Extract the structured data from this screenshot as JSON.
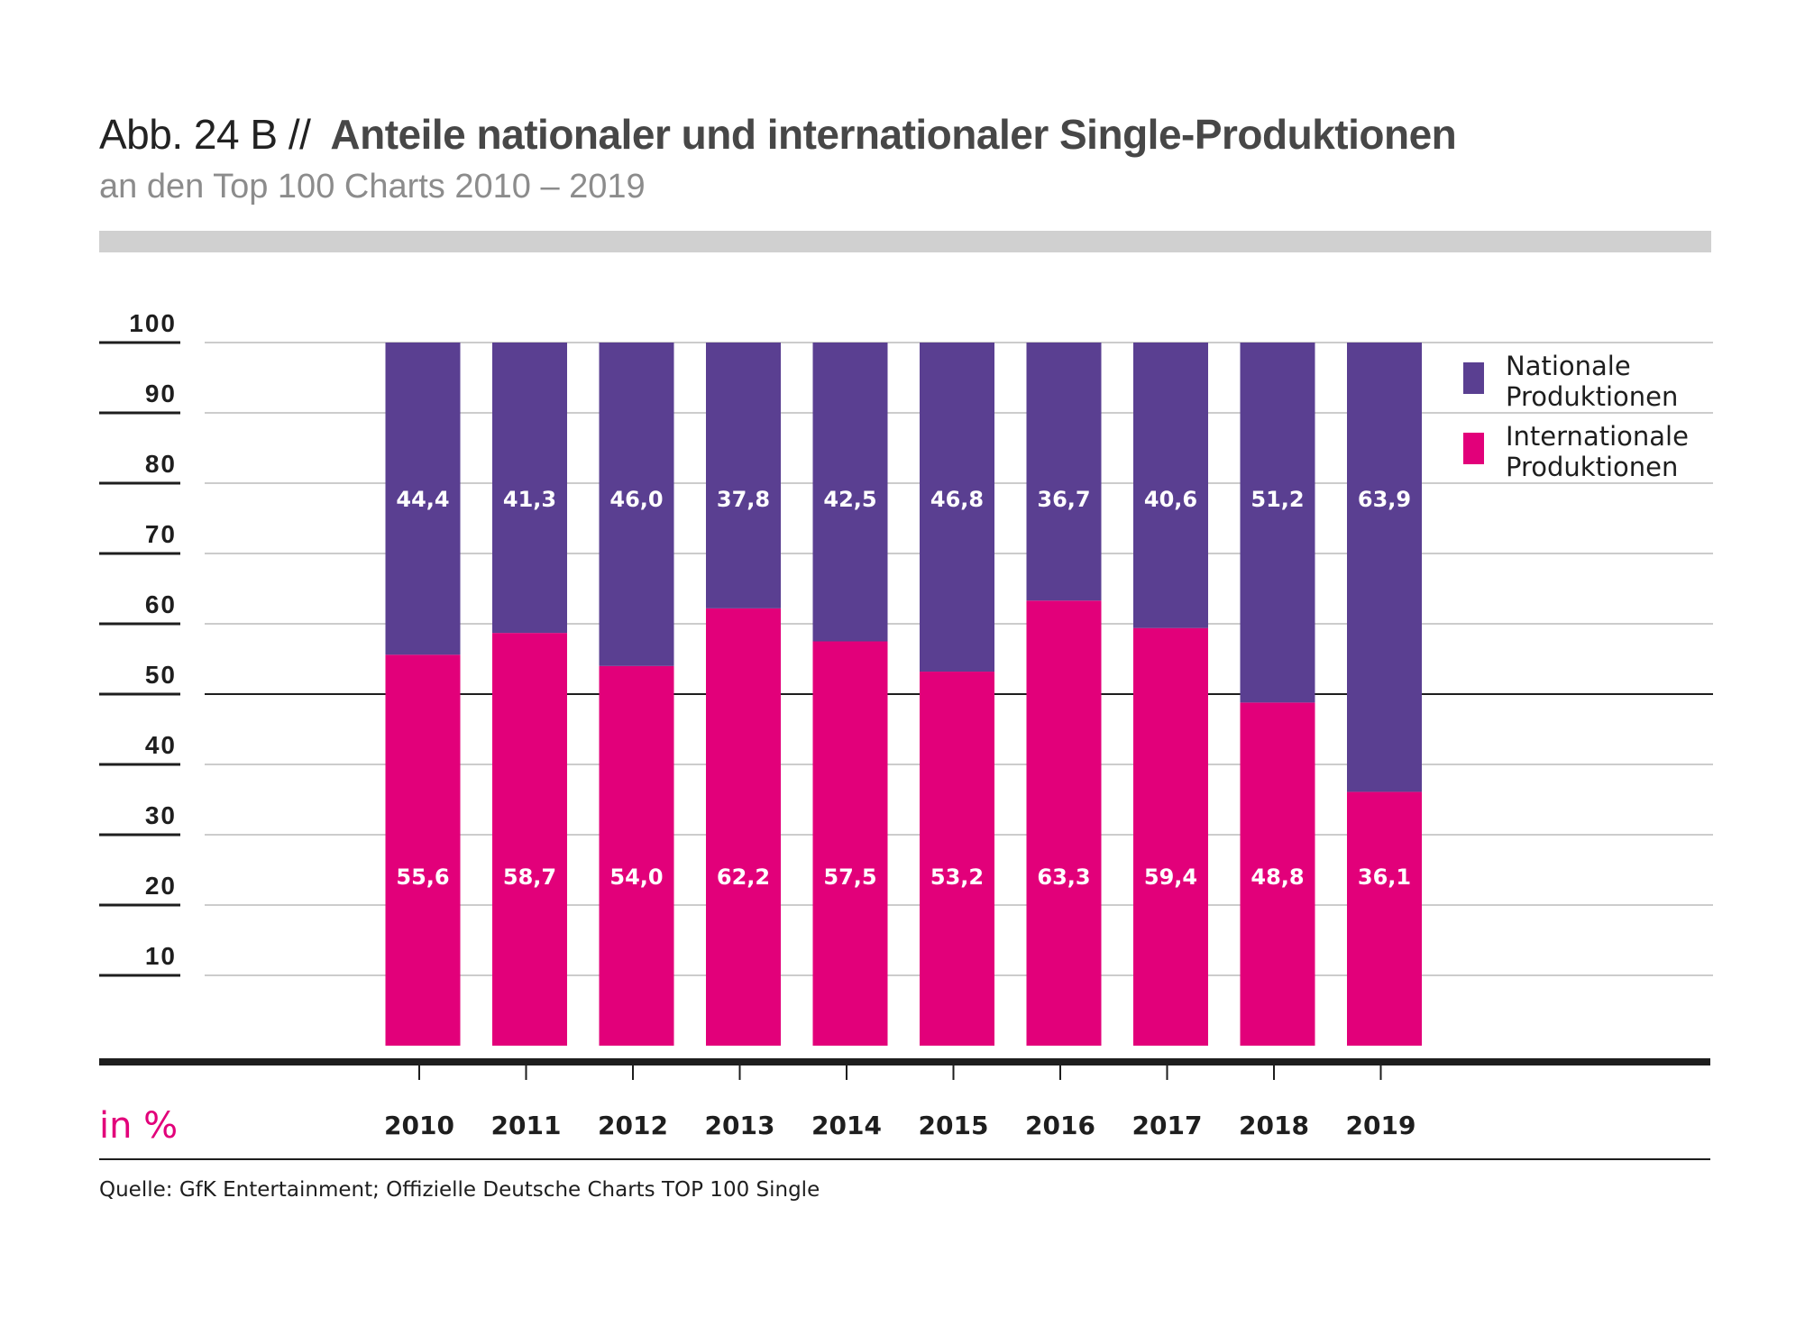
{
  "header": {
    "prefix": "Abb. 24 B //",
    "title": "Anteile nationaler und internationaler Single-Produktionen",
    "subtitle": "an den Top 100 Charts 2010 – 2019"
  },
  "footer": {
    "source": "Quelle: GfK Entertainment; Offizielle Deutsche Charts TOP 100 Single"
  },
  "colors": {
    "national": "#5a3f91",
    "international": "#e2007a",
    "grid": "#cccccc",
    "axis": "#1e1e1e",
    "unit": "#e2007a"
  },
  "chart_data": {
    "type": "bar",
    "stacked": true,
    "title": "Anteile nationaler und internationaler Single-Produktionen",
    "subtitle": "an den Top 100 Charts 2010 – 2019",
    "xlabel": "",
    "ylabel": "in %",
    "ylim": [
      0,
      100
    ],
    "yticks": [
      10,
      20,
      30,
      40,
      50,
      60,
      70,
      80,
      90,
      100
    ],
    "grid": true,
    "legend_position": "right",
    "categories": [
      "2010",
      "2011",
      "2012",
      "2013",
      "2014",
      "2015",
      "2016",
      "2017",
      "2018",
      "2019"
    ],
    "series": [
      {
        "name": "Internationale Produktionen",
        "key": "international",
        "values": [
          55.6,
          58.7,
          54.0,
          62.2,
          57.5,
          53.2,
          63.3,
          59.4,
          48.8,
          36.1
        ],
        "labels": [
          "55,6",
          "58,7",
          "54,0",
          "62,2",
          "57,5",
          "53,2",
          "63,3",
          "59,4",
          "48,8",
          "36,1"
        ]
      },
      {
        "name": "Nationale Produktionen",
        "key": "national",
        "values": [
          44.4,
          41.3,
          46.0,
          37.8,
          42.5,
          46.8,
          36.7,
          40.6,
          51.2,
          63.9
        ],
        "labels": [
          "44,4",
          "41,3",
          "46,0",
          "37,8",
          "42,5",
          "46,8",
          "36,7",
          "40,6",
          "51,2",
          "63,9"
        ]
      }
    ],
    "legend": [
      {
        "key": "national",
        "lines": [
          "Nationale",
          "Produktionen"
        ]
      },
      {
        "key": "international",
        "lines": [
          "Internationale",
          "Produktionen"
        ]
      }
    ],
    "highlight_gridline": 50
  }
}
